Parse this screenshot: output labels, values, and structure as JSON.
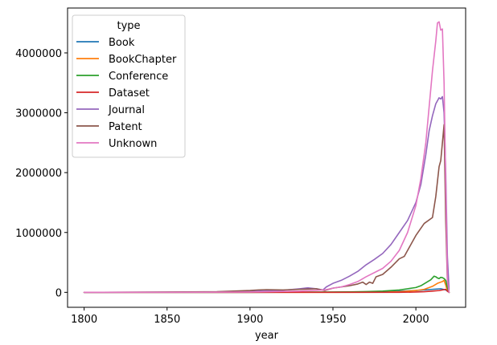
{
  "chart_data": {
    "type": "line",
    "title": "",
    "xlabel": "year",
    "ylabel": "",
    "xlim": [
      1790,
      2030
    ],
    "ylim": [
      -250000,
      4750000
    ],
    "xticks": [
      1800,
      1850,
      1900,
      1950,
      2000
    ],
    "xtick_labels": [
      "1800",
      "1850",
      "1900",
      "1950",
      "2000"
    ],
    "yticks": [
      0,
      1000000,
      2000000,
      3000000,
      4000000
    ],
    "ytick_labels": [
      "0",
      "1000000",
      "2000000",
      "3000000",
      "4000000"
    ],
    "grid": false,
    "legend": {
      "title": "type",
      "placement": "top-left"
    },
    "series": [
      {
        "name": "Book",
        "color": "#1f77b4",
        "x": [
          1800,
          1850,
          1900,
          1950,
          1980,
          1990,
          2000,
          2005,
          2010,
          2015,
          2018,
          2020
        ],
        "y": [
          0,
          0,
          0,
          2000,
          10000,
          20000,
          30000,
          40000,
          50000,
          60000,
          40000,
          0
        ]
      },
      {
        "name": "BookChapter",
        "color": "#ff7f0e",
        "x": [
          1800,
          1900,
          1950,
          1980,
          1990,
          2000,
          2005,
          2010,
          2013,
          2016,
          2017,
          2018,
          2019,
          2020
        ],
        "y": [
          0,
          0,
          0,
          2000,
          10000,
          30000,
          50000,
          100000,
          150000,
          180000,
          200000,
          120000,
          30000,
          0
        ]
      },
      {
        "name": "Conference",
        "color": "#2ca02c",
        "x": [
          1800,
          1900,
          1950,
          1960,
          1970,
          1980,
          1990,
          1995,
          2000,
          2003,
          2006,
          2009,
          2011,
          2012,
          2013,
          2014,
          2015,
          2016,
          2017,
          2018,
          2019,
          2020
        ],
        "y": [
          0,
          0,
          5000,
          8000,
          12000,
          20000,
          40000,
          60000,
          80000,
          110000,
          160000,
          210000,
          270000,
          260000,
          240000,
          230000,
          250000,
          245000,
          230000,
          200000,
          80000,
          0
        ]
      },
      {
        "name": "Dataset",
        "color": "#d62728",
        "x": [
          1800,
          1950,
          1990,
          2000,
          2005,
          2010,
          2014,
          2016,
          2018,
          2019,
          2020
        ],
        "y": [
          0,
          0,
          0,
          5000,
          10000,
          20000,
          30000,
          40000,
          50000,
          20000,
          0
        ]
      },
      {
        "name": "Journal",
        "color": "#9467bd",
        "x": [
          1800,
          1850,
          1880,
          1900,
          1910,
          1920,
          1930,
          1935,
          1940,
          1944,
          1946,
          1950,
          1955,
          1960,
          1965,
          1970,
          1975,
          1980,
          1985,
          1990,
          1995,
          2000,
          2003,
          2006,
          2008,
          2010,
          2012,
          2014,
          2015,
          2016,
          2017,
          2018,
          2019,
          2020
        ],
        "y": [
          0,
          3000,
          8000,
          15000,
          25000,
          35000,
          60000,
          75000,
          60000,
          40000,
          90000,
          150000,
          200000,
          270000,
          350000,
          460000,
          550000,
          650000,
          800000,
          1000000,
          1200000,
          1500000,
          1800000,
          2300000,
          2700000,
          2950000,
          3150000,
          3250000,
          3230000,
          3270000,
          3000000,
          2000000,
          600000,
          50000
        ]
      },
      {
        "name": "Patent",
        "color": "#8c564b",
        "x": [
          1800,
          1850,
          1880,
          1900,
          1905,
          1910,
          1920,
          1930,
          1940,
          1945,
          1950,
          1955,
          1960,
          1965,
          1968,
          1970,
          1972,
          1974,
          1976,
          1980,
          1985,
          1990,
          1993,
          1995,
          2000,
          2005,
          2010,
          2012,
          2014,
          2015,
          2016,
          2017,
          2018,
          2019,
          2020
        ],
        "y": [
          0,
          5000,
          10000,
          30000,
          40000,
          45000,
          40000,
          50000,
          60000,
          30000,
          70000,
          90000,
          110000,
          140000,
          170000,
          130000,
          170000,
          150000,
          260000,
          300000,
          420000,
          560000,
          600000,
          700000,
          950000,
          1150000,
          1250000,
          1600000,
          2100000,
          2200000,
          2500000,
          2800000,
          1200000,
          200000,
          0
        ]
      },
      {
        "name": "Unknown",
        "color": "#e377c2",
        "x": [
          1800,
          1850,
          1900,
          1930,
          1945,
          1950,
          1955,
          1960,
          1965,
          1970,
          1975,
          1980,
          1985,
          1990,
          1995,
          2000,
          2003,
          2006,
          2008,
          2010,
          2012,
          2013,
          2014,
          2015,
          2016,
          2017,
          2018,
          2019,
          2020
        ],
        "y": [
          0,
          0,
          5000,
          20000,
          40000,
          70000,
          90000,
          130000,
          180000,
          260000,
          330000,
          400000,
          520000,
          700000,
          1000000,
          1450000,
          1900000,
          2500000,
          3100000,
          3700000,
          4200000,
          4500000,
          4520000,
          4380000,
          4400000,
          3500000,
          1800000,
          200000,
          0
        ]
      }
    ]
  }
}
